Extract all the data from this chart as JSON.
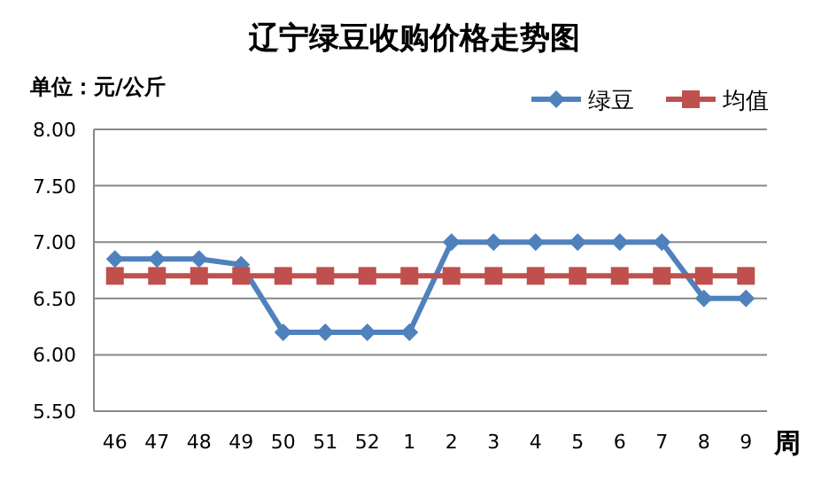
{
  "chart_data": {
    "type": "line",
    "title": "辽宁绿豆收购价格走势图",
    "ylabel": "单位：元/公斤",
    "xlabel": "周",
    "categories": [
      "46",
      "47",
      "48",
      "49",
      "50",
      "51",
      "52",
      "1",
      "2",
      "3",
      "4",
      "5",
      "6",
      "7",
      "8",
      "9"
    ],
    "series": [
      {
        "name": "绿豆",
        "color": "#4f81bd",
        "marker": "diamond",
        "values": [
          6.85,
          6.85,
          6.85,
          6.8,
          6.2,
          6.2,
          6.2,
          6.2,
          7.0,
          7.0,
          7.0,
          7.0,
          7.0,
          7.0,
          6.5,
          6.5
        ]
      },
      {
        "name": "均值",
        "color": "#c0504d",
        "marker": "square",
        "values": [
          6.7,
          6.7,
          6.7,
          6.7,
          6.7,
          6.7,
          6.7,
          6.7,
          6.7,
          6.7,
          6.7,
          6.7,
          6.7,
          6.7,
          6.7,
          6.7
        ]
      }
    ],
    "ylim": [
      5.5,
      8.0
    ],
    "yticks": [
      {
        "value": 5.5,
        "label": "5.50"
      },
      {
        "value": 6.0,
        "label": "6.00"
      },
      {
        "value": 6.5,
        "label": "6.50"
      },
      {
        "value": 7.0,
        "label": "7.00"
      },
      {
        "value": 7.5,
        "label": "7.50"
      },
      {
        "value": 8.0,
        "label": "8.00"
      }
    ],
    "grid": "y",
    "legend": "top right",
    "line_style": "solid"
  }
}
